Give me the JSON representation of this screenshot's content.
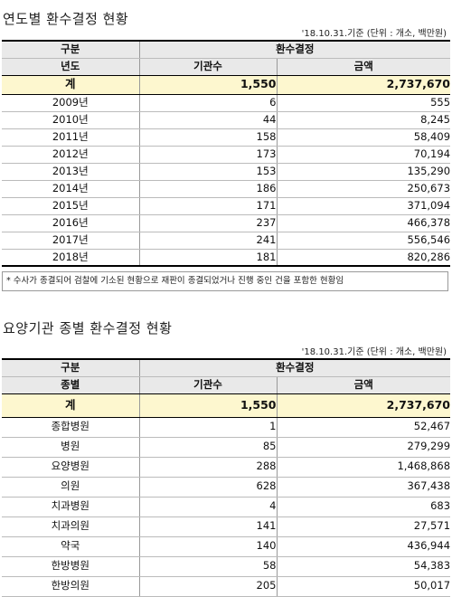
{
  "table1": {
    "title": "연도별 환수결정 현황",
    "note": "'18.10.31.기준 (단위 : 개소, 백만원)",
    "header": {
      "group_label": "구분",
      "decision_label": "환수결정",
      "row_label": "년도",
      "count_label": "기관수",
      "amount_label": "금액"
    },
    "total": {
      "label": "계",
      "count": "1,550",
      "amount": "2,737,670"
    },
    "rows": [
      {
        "label": "2009년",
        "count": "6",
        "amount": "555"
      },
      {
        "label": "2010년",
        "count": "44",
        "amount": "8,245"
      },
      {
        "label": "2011년",
        "count": "158",
        "amount": "58,409"
      },
      {
        "label": "2012년",
        "count": "173",
        "amount": "70,194"
      },
      {
        "label": "2013년",
        "count": "153",
        "amount": "135,290"
      },
      {
        "label": "2014년",
        "count": "186",
        "amount": "250,673"
      },
      {
        "label": "2015년",
        "count": "171",
        "amount": "371,094"
      },
      {
        "label": "2016년",
        "count": "237",
        "amount": "466,378"
      },
      {
        "label": "2017년",
        "count": "241",
        "amount": "556,546"
      },
      {
        "label": "2018년",
        "count": "181",
        "amount": "820,286"
      }
    ],
    "footnote": "* 수사가 종결되어 검찰에 기소된 현황으로 재판이 종결되었거나 진행 중인 건을 포함한 현황임"
  },
  "table2": {
    "title": "요양기관 종별 환수결정 현황",
    "note": "'18.10.31.기준 (단위 : 개소, 백만원)",
    "header": {
      "group_label": "구분",
      "decision_label": "환수결정",
      "row_label": "종별",
      "count_label": "기관수",
      "amount_label": "금액"
    },
    "total": {
      "label": "계",
      "count": "1,550",
      "amount": "2,737,670"
    },
    "rows": [
      {
        "label": "종합병원",
        "count": "1",
        "amount": "52,467"
      },
      {
        "label": "병원",
        "count": "85",
        "amount": "279,299"
      },
      {
        "label": "요양병원",
        "count": "288",
        "amount": "1,468,868"
      },
      {
        "label": "의원",
        "count": "628",
        "amount": "367,438"
      },
      {
        "label": "치과병원",
        "count": "4",
        "amount": "683"
      },
      {
        "label": "치과의원",
        "count": "141",
        "amount": "27,571"
      },
      {
        "label": "약국",
        "count": "140",
        "amount": "436,944"
      },
      {
        "label": "한방병원",
        "count": "58",
        "amount": "54,383"
      },
      {
        "label": "한방의원",
        "count": "205",
        "amount": "50,017"
      }
    ]
  }
}
